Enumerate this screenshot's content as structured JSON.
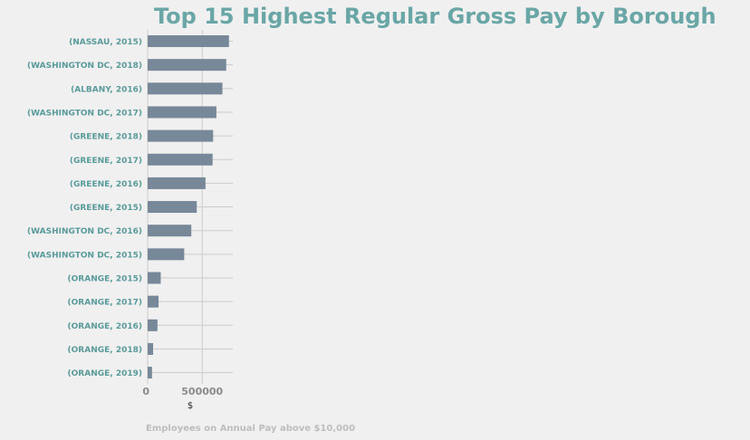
{
  "chart_data": {
    "type": "bar",
    "orientation": "horizontal",
    "title": "Top 15 Highest Regular Gross Pay by Borough",
    "xlabel": "$",
    "ylabel": "",
    "note": "Employees on Annual Pay above $10,000",
    "xlim": [
      0,
      780000
    ],
    "xticks": [
      0,
      500000
    ],
    "xtick_labels": [
      "0",
      "500000"
    ],
    "grid": true,
    "bar_color": "#778899",
    "title_color": "#6aa6a6",
    "categories": [
      "(NASSAU, 2015)",
      "(WASHINGTON DC, 2018)",
      "(ALBANY, 2016)",
      "(WASHINGTON DC, 2017)",
      "(GREENE, 2018)",
      "(GREENE, 2017)",
      "(GREENE, 2016)",
      "(GREENE, 2015)",
      "(WASHINGTON DC, 2016)",
      "(WASHINGTON DC, 2015)",
      "(ORANGE, 2015)",
      "(ORANGE, 2017)",
      "(ORANGE, 2016)",
      "(ORANGE, 2018)",
      "(ORANGE, 2019)"
    ],
    "values": [
      745000,
      720000,
      685000,
      630000,
      600000,
      595000,
      530000,
      450000,
      400000,
      335000,
      120000,
      100000,
      90000,
      50000,
      40000
    ]
  }
}
